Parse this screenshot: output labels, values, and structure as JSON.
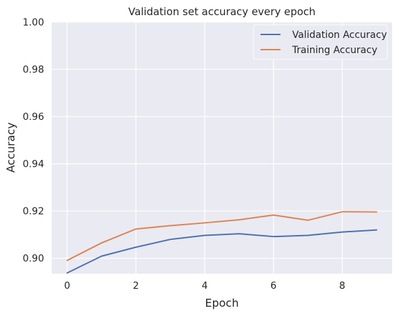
{
  "chart_data": {
    "type": "line",
    "title": "Validation set accuracy every epoch",
    "xlabel": "Epoch",
    "ylabel": "Accuracy",
    "x": [
      0,
      1,
      2,
      3,
      4,
      5,
      6,
      7,
      8,
      9
    ],
    "xlim": [
      -0.45,
      9.45
    ],
    "ylim": [
      0.8935,
      1.0
    ],
    "xticks": [
      0,
      2,
      4,
      6,
      8
    ],
    "xtick_labels": [
      "0",
      "2",
      "4",
      "6",
      "8"
    ],
    "yticks": [
      0.9,
      0.92,
      0.94,
      0.96,
      0.98,
      1.0
    ],
    "ytick_labels": [
      "0.90",
      "0.92",
      "0.94",
      "0.96",
      "0.98",
      "1.00"
    ],
    "grid": true,
    "legend_position": "top-right",
    "series": [
      {
        "name": "Validation Accuracy",
        "color": "#4c72b0",
        "values": [
          0.8938,
          0.9009,
          0.9047,
          0.908,
          0.9097,
          0.9104,
          0.9092,
          0.9097,
          0.9111,
          0.912
        ]
      },
      {
        "name": "Training Accuracy",
        "color": "#dd8452",
        "values": [
          0.8991,
          0.9065,
          0.9124,
          0.9138,
          0.915,
          0.9163,
          0.9183,
          0.9161,
          0.9197,
          0.9196
        ]
      }
    ],
    "colors": {
      "plot_background": "#eaeaf2",
      "grid": "#ffffff",
      "text": "#262626"
    }
  }
}
